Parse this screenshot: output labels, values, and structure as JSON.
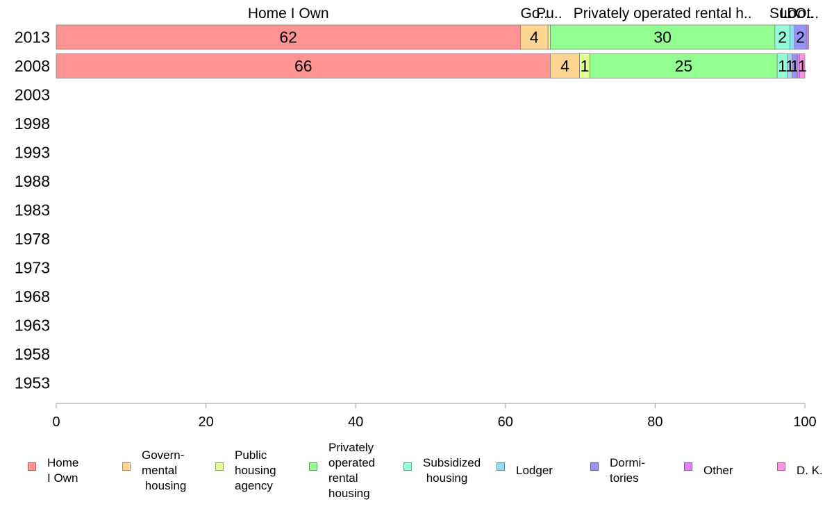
{
  "chart_data": {
    "type": "bar",
    "orientation": "horizontal",
    "stacked": true,
    "categories": [
      "2013",
      "2008",
      "2003",
      "1998",
      "1993",
      "1988",
      "1983",
      "1978",
      "1973",
      "1968",
      "1963",
      "1958",
      "1953"
    ],
    "xlim": [
      0,
      100
    ],
    "xticks": [
      "0",
      "20",
      "40",
      "60",
      "80",
      "100"
    ],
    "top_labels": [
      "Home I Own",
      "Go..",
      "Pu..",
      "Privately operated rental h..",
      "Su..",
      "Lo..",
      "Do..",
      "Ot.."
    ],
    "series": [
      {
        "name": "Home I Own",
        "legend": "Home\nI Own",
        "color": "#ff9493",
        "values": [
          62,
          66,
          null,
          null,
          null,
          null,
          null,
          null,
          null,
          null,
          null,
          null,
          null
        ],
        "labels": [
          "62",
          "66"
        ]
      },
      {
        "name": "Governmental housing",
        "legend": "Govern-\nmental\n housing",
        "color": "#ffd592",
        "values": [
          3.7,
          3.9,
          null,
          null,
          null,
          null,
          null,
          null,
          null,
          null,
          null,
          null,
          null
        ],
        "labels": [
          "4",
          "4"
        ]
      },
      {
        "name": "Public housing agency",
        "legend": "Public\nhousing\nagency",
        "color": "#e2ff92",
        "values": [
          0.3,
          1.4,
          null,
          null,
          null,
          null,
          null,
          null,
          null,
          null,
          null,
          null,
          null
        ],
        "labels": [
          "",
          "1"
        ]
      },
      {
        "name": "Privately operated rental housing",
        "legend": "Privately\noperated\nrental\nhousing",
        "color": "#94ff91",
        "values": [
          30,
          25,
          null,
          null,
          null,
          null,
          null,
          null,
          null,
          null,
          null,
          null,
          null
        ],
        "labels": [
          "30",
          "25"
        ]
      },
      {
        "name": "Subsidized housing",
        "legend": "Subsidized\n housing",
        "color": "#92ffd8",
        "values": [
          2,
          1.4,
          null,
          null,
          null,
          null,
          null,
          null,
          null,
          null,
          null,
          null,
          null
        ],
        "labels": [
          "2",
          "1"
        ]
      },
      {
        "name": "Lodger",
        "legend": "Lodger",
        "color": "#94dafb",
        "values": [
          0.6,
          0.6,
          null,
          null,
          null,
          null,
          null,
          null,
          null,
          null,
          null,
          null,
          null
        ],
        "labels": [
          "",
          "1"
        ]
      },
      {
        "name": "Dormitories",
        "legend": "Dormi-\ntories",
        "color": "#9494f9",
        "values": [
          1.6,
          0.7,
          null,
          null,
          null,
          null,
          null,
          null,
          null,
          null,
          null,
          null,
          null
        ],
        "labels": [
          "2",
          "1"
        ]
      },
      {
        "name": "Other",
        "legend": "Other",
        "color": "#e281fb",
        "values": [
          0.2,
          0.3,
          null,
          null,
          null,
          null,
          null,
          null,
          null,
          null,
          null,
          null,
          null
        ],
        "labels": [
          "",
          ""
        ]
      },
      {
        "name": "D. K.",
        "legend": "D. K.",
        "color": "#fd94df",
        "values": [
          0.1,
          0.7,
          null,
          null,
          null,
          null,
          null,
          null,
          null,
          null,
          null,
          null,
          null
        ],
        "labels": [
          "",
          "1"
        ]
      }
    ]
  }
}
